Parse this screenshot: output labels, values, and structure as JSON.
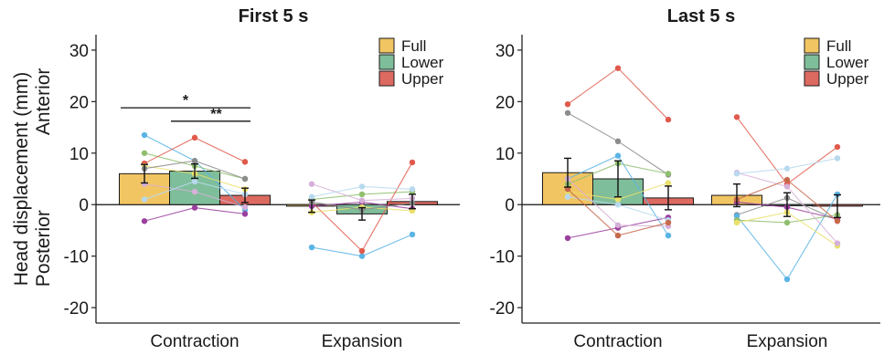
{
  "chart_data": [
    {
      "type": "bar",
      "title": "First 5 s",
      "categories": [
        "Contraction",
        "Expansion"
      ],
      "ylim": [
        -23,
        33
      ],
      "yticks": [
        30,
        20,
        10,
        0,
        -10,
        -20
      ],
      "ylabel": "Head displacement (mm)",
      "ylabel_sub": {
        "top": "Anterior",
        "bottom": "Posterior"
      },
      "legend": {
        "position": "top-right"
      },
      "series": [
        {
          "name": "Full",
          "color": "#f2c563",
          "values": [
            6,
            -0.3
          ],
          "error": [
            1.8,
            1.2
          ]
        },
        {
          "name": "Lower",
          "color": "#7fbe9a",
          "values": [
            6.5,
            -1.8
          ],
          "error": [
            1.4,
            1.2
          ]
        },
        {
          "name": "Upper",
          "color": "#dc6a61",
          "values": [
            1.8,
            0.6
          ],
          "error": [
            1.4,
            1.4
          ]
        }
      ],
      "significance": [
        {
          "label": "*",
          "from_series": "Full",
          "to_series": "Upper",
          "category": "Contraction",
          "y": 18.8
        },
        {
          "label": "**",
          "from_series": "Lower",
          "to_series": "Upper",
          "category": "Contraction",
          "y": 16.2
        }
      ],
      "subjects": [
        {
          "color": "#5ab4e5",
          "Contraction": [
            13.5,
            8.5,
            -1
          ],
          "Expansion": [
            -8.3,
            -10,
            -5.8
          ]
        },
        {
          "color": "#8fbf6e",
          "Contraction": [
            10,
            7.5,
            5
          ],
          "Expansion": [
            1,
            2,
            2.5
          ]
        },
        {
          "color": "#e05a4c",
          "Contraction": [
            8,
            13,
            8.3
          ],
          "Expansion": [
            0.5,
            -9,
            8.2
          ]
        },
        {
          "color": "#9b3f9e",
          "Contraction": [
            -3.2,
            -0.6,
            -1.8
          ],
          "Expansion": [
            -0.3,
            0.5,
            -0.8
          ]
        },
        {
          "color": "#d6b0d8",
          "Contraction": [
            4,
            2.5,
            -0.5
          ],
          "Expansion": [
            4,
            0.8,
            1.2
          ]
        },
        {
          "color": "#b8d9ee",
          "Contraction": [
            1,
            4.5,
            2
          ],
          "Expansion": [
            1.5,
            3.5,
            3
          ]
        },
        {
          "color": "#eae06a",
          "Contraction": [
            7.5,
            6,
            3
          ],
          "Expansion": [
            -1.5,
            -0.5,
            -1.2
          ]
        },
        {
          "color": "#8c8c8c",
          "Contraction": [
            7,
            8.5,
            5
          ],
          "Expansion": [
            0.5,
            -1,
            0.3
          ]
        }
      ]
    },
    {
      "type": "bar",
      "title": "Last 5 s",
      "categories": [
        "Contraction",
        "Expansion"
      ],
      "ylim": [
        -23,
        33
      ],
      "yticks": [
        30,
        20,
        10,
        0,
        -10,
        -20
      ],
      "legend": {
        "position": "top-right"
      },
      "series": [
        {
          "name": "Full",
          "color": "#f2c563",
          "values": [
            6.2,
            1.8
          ],
          "error": [
            2.8,
            2.2
          ]
        },
        {
          "name": "Lower",
          "color": "#7fbe9a",
          "values": [
            5,
            0
          ],
          "error": [
            3.5,
            2.3
          ]
        },
        {
          "name": "Upper",
          "color": "#dc6a61",
          "values": [
            1.3,
            -0.3
          ],
          "error": [
            2.3,
            2.2
          ]
        }
      ],
      "subjects": [
        {
          "color": "#e05a4c",
          "Contraction": [
            19.5,
            26.5,
            16.5
          ],
          "Expansion": [
            17,
            4,
            11.2
          ]
        },
        {
          "color": "#8c8c8c",
          "Contraction": [
            17.8,
            12.3,
            5.8
          ],
          "Expansion": [
            -2,
            1.3,
            -3
          ]
        },
        {
          "color": "#5ab4e5",
          "Contraction": [
            5,
            9.5,
            -6
          ],
          "Expansion": [
            -2.2,
            -14.5,
            2
          ]
        },
        {
          "color": "#9b3f9e",
          "Contraction": [
            -6.5,
            -4.5,
            -2.5
          ],
          "Expansion": [
            0.5,
            -0.5,
            -2.8
          ]
        },
        {
          "color": "#8fbf6e",
          "Contraction": [
            4,
            8,
            6
          ],
          "Expansion": [
            -3,
            -3.5,
            -2
          ]
        },
        {
          "color": "#eae06a",
          "Contraction": [
            2.5,
            1,
            4.2
          ],
          "Expansion": [
            -3.5,
            -1.5,
            -8
          ]
        },
        {
          "color": "#d6b0d8",
          "Contraction": [
            5,
            -4,
            -4.2
          ],
          "Expansion": [
            6.2,
            3.5,
            -7.5
          ]
        },
        {
          "color": "#b8d9ee",
          "Contraction": [
            1.5,
            0,
            -3
          ],
          "Expansion": [
            6,
            7,
            9
          ]
        },
        {
          "color": "#c7694c",
          "Contraction": [
            3,
            -6,
            -3.5
          ],
          "Expansion": [
            1,
            4.8,
            -3.2
          ]
        }
      ]
    }
  ]
}
